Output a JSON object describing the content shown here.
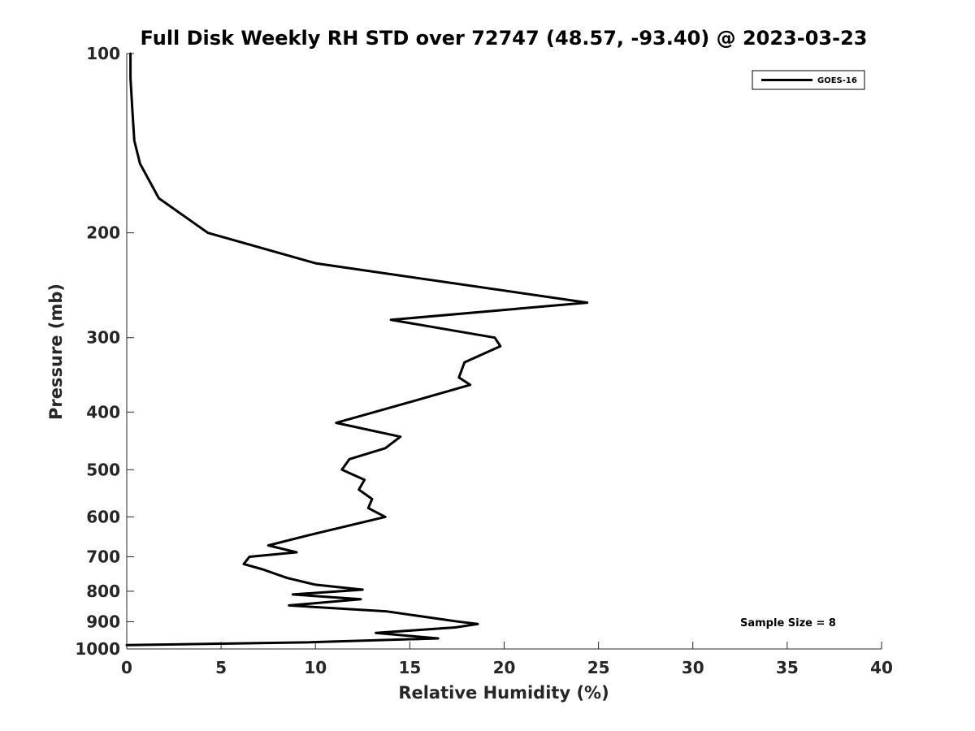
{
  "chart_data": {
    "type": "line",
    "title": "Full Disk Weekly RH STD over 72747 (48.57, -93.40) @ 2023-03-23",
    "xlabel": "Relative Humidity (%)",
    "ylabel": "Pressure (mb)",
    "xlim": [
      0,
      40
    ],
    "ylim": [
      100,
      1000
    ],
    "yscale": "log",
    "y_reversed": true,
    "xticks": [
      0,
      5,
      10,
      15,
      20,
      25,
      30,
      35,
      40
    ],
    "yticks": [
      100,
      200,
      300,
      400,
      500,
      600,
      700,
      800,
      900,
      1000
    ],
    "grid": false,
    "legend": {
      "placement": "top-right",
      "entries": [
        "GOES-16"
      ]
    },
    "annotations": [
      "Sample Size = 8"
    ],
    "series": [
      {
        "name": "GOES-16",
        "color": "#000000",
        "points": [
          [
            0.2,
            100
          ],
          [
            0.2,
            110
          ],
          [
            0.3,
            125
          ],
          [
            0.4,
            140
          ],
          [
            0.7,
            153
          ],
          [
            1.7,
            175
          ],
          [
            4.3,
            200
          ],
          [
            10.0,
            225
          ],
          [
            24.4,
            262
          ],
          [
            14.0,
            280
          ],
          [
            19.5,
            300
          ],
          [
            19.8,
            310
          ],
          [
            17.9,
            330
          ],
          [
            17.6,
            350
          ],
          [
            18.2,
            360
          ],
          [
            15.0,
            385
          ],
          [
            11.1,
            417
          ],
          [
            14.5,
            440
          ],
          [
            13.7,
            460
          ],
          [
            11.8,
            480
          ],
          [
            11.4,
            500
          ],
          [
            12.6,
            520
          ],
          [
            12.3,
            540
          ],
          [
            13.0,
            560
          ],
          [
            12.8,
            580
          ],
          [
            13.7,
            600
          ],
          [
            10.0,
            640
          ],
          [
            7.5,
            670
          ],
          [
            9.0,
            688
          ],
          [
            6.5,
            700
          ],
          [
            6.2,
            720
          ],
          [
            7.2,
            735
          ],
          [
            8.5,
            760
          ],
          [
            10.0,
            780
          ],
          [
            12.5,
            795
          ],
          [
            8.8,
            810
          ],
          [
            12.4,
            825
          ],
          [
            8.6,
            845
          ],
          [
            13.8,
            865
          ],
          [
            17.4,
            898
          ],
          [
            18.6,
            908
          ],
          [
            17.4,
            920
          ],
          [
            13.2,
            940
          ],
          [
            16.5,
            960
          ],
          [
            9.5,
            975
          ],
          [
            0.0,
            985
          ]
        ]
      }
    ]
  }
}
